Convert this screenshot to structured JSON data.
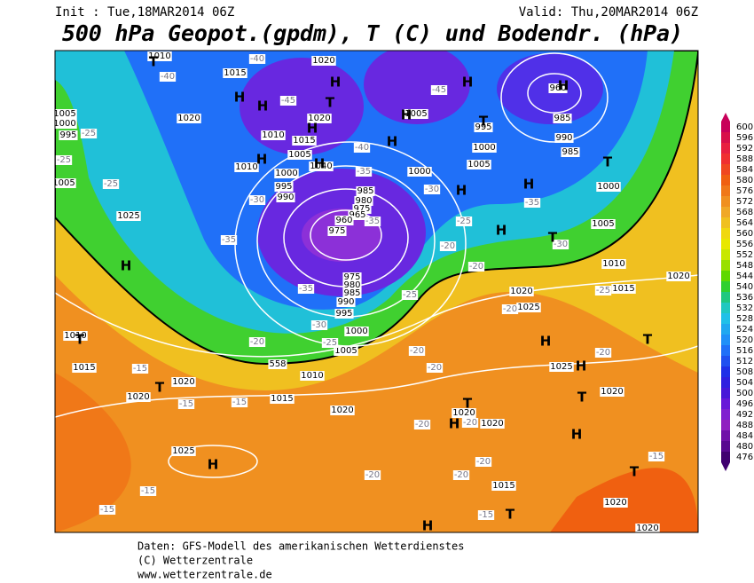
{
  "header": {
    "init": "Init : Tue,18MAR2014 06Z",
    "valid": "Valid: Thu,20MAR2014 06Z",
    "title": "500 hPa Geopot.(gpdm), T (C) und Bodendr. (hPa)"
  },
  "legend": {
    "labels": [
      "600",
      "596",
      "592",
      "588",
      "584",
      "580",
      "576",
      "572",
      "568",
      "564",
      "560",
      "556",
      "552",
      "548",
      "544",
      "540",
      "536",
      "532",
      "528",
      "524",
      "520",
      "516",
      "512",
      "508",
      "504",
      "500",
      "496",
      "492",
      "488",
      "484",
      "480",
      "476"
    ],
    "colors": [
      "#c8005a",
      "#d8104a",
      "#e82040",
      "#f03030",
      "#f04820",
      "#f06010",
      "#f07818",
      "#f09020",
      "#f0a828",
      "#f0c020",
      "#f0d810",
      "#e8e800",
      "#c8e800",
      "#98e000",
      "#60d800",
      "#30d030",
      "#20c880",
      "#20c8c0",
      "#20c0e8",
      "#20a8f0",
      "#2090f8",
      "#2070f8",
      "#2050f0",
      "#2030e8",
      "#3020e0",
      "#4818d8",
      "#6818d8",
      "#8020d0",
      "#9020c0",
      "#7010a8",
      "#580890",
      "#400070"
    ]
  },
  "map": {
    "highs_lows": [
      "H",
      "T",
      "T",
      "H",
      "H",
      "H",
      "T",
      "H",
      "H",
      "H",
      "H",
      "H",
      "H",
      "H",
      "H",
      "T",
      "H",
      "T",
      "H",
      "T",
      "H",
      "T",
      "H",
      "T",
      "T",
      "H",
      "H",
      "T",
      "T",
      "H",
      "T",
      "H"
    ],
    "isobar_labels": [
      "1020",
      "1015",
      "1020",
      "1020",
      "1015",
      "1010",
      "1010",
      "1005",
      "1040",
      "1000",
      "995",
      "990",
      "985",
      "980",
      "975",
      "965",
      "960",
      "975",
      "1005",
      "1000",
      "1000",
      "1005",
      "995",
      "960",
      "985",
      "990",
      "985",
      "1000",
      "1005",
      "1010",
      "1015",
      "1025",
      "1020",
      "975",
      "980",
      "985",
      "990",
      "995",
      "1000",
      "1005",
      "1010",
      "1015",
      "1020",
      "1020",
      "1020",
      "1015",
      "1010",
      "1025",
      "1020",
      "1025",
      "1025",
      "1020",
      "1020",
      "1020",
      "1015",
      "1020",
      "1020",
      "1010",
      "1005",
      "1000",
      "995",
      "1005",
      "558"
    ],
    "temperature_labels": [
      "-40",
      "-40",
      "-45",
      "-45",
      "-40",
      "-35",
      "-30",
      "-35",
      "-35",
      "-30",
      "-25",
      "-20",
      "-20",
      "-35",
      "-30",
      "-25",
      "-35",
      "-30",
      "-25",
      "-20",
      "-25",
      "-20",
      "-20",
      "-15",
      "-15",
      "-15",
      "-20",
      "-20",
      "-15",
      "-15",
      "-15",
      "-20",
      "-20",
      "-20",
      "-15",
      "-25",
      "-25",
      "-25",
      "-20",
      "-20"
    ]
  },
  "footer": {
    "lines": [
      "Daten: GFS-Modell des amerikanischen Wetterdienstes",
      "(C) Wetterzentrale",
      "www.wetterzentrale.de"
    ]
  }
}
